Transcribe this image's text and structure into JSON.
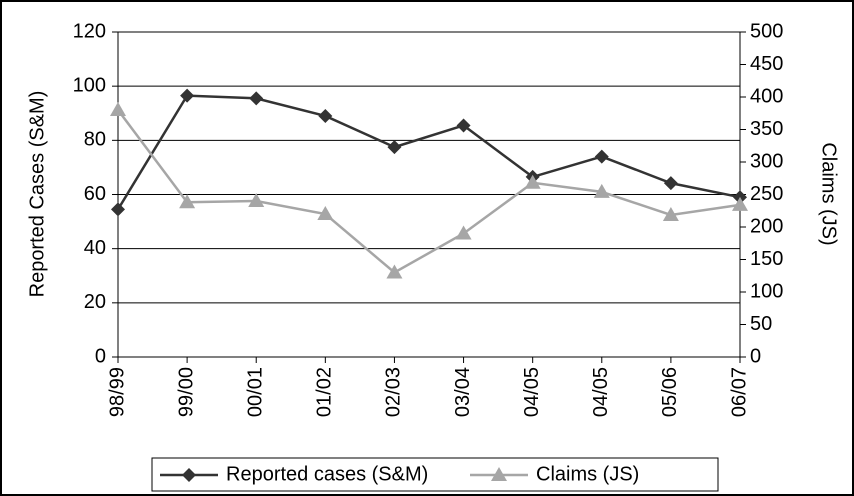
{
  "chart_data": {
    "type": "line",
    "categories": [
      "98/99",
      "99/00",
      "00/01",
      "01/02",
      "02/03",
      "03/04",
      "04/05",
      "04/05",
      "05/06",
      "06/07"
    ],
    "y_label": "Reported Cases (S&M)",
    "y2_label": "Claims (JS)",
    "ylim": [
      0,
      120
    ],
    "yticks": [
      0,
      20,
      40,
      60,
      80,
      100,
      120
    ],
    "y2lim": [
      0,
      500
    ],
    "y2ticks": [
      0,
      50,
      100,
      150,
      200,
      250,
      300,
      350,
      400,
      450,
      500
    ],
    "grid": true,
    "legend": "bottom",
    "series": [
      {
        "name": "Reported cases (S&M)",
        "color": "#333333",
        "marker": "diamond",
        "values": [
          54.5,
          96.5,
          95.5,
          89,
          77.5,
          85.5,
          66.5,
          74,
          64.2,
          59
        ]
      },
      {
        "name": "Claims (JS)",
        "color": "#a6a6a6",
        "marker": "triangle",
        "axis": "y2",
        "values": [
          380,
          238,
          240,
          220,
          130,
          190,
          268,
          254,
          218.5,
          234
        ]
      }
    ]
  }
}
